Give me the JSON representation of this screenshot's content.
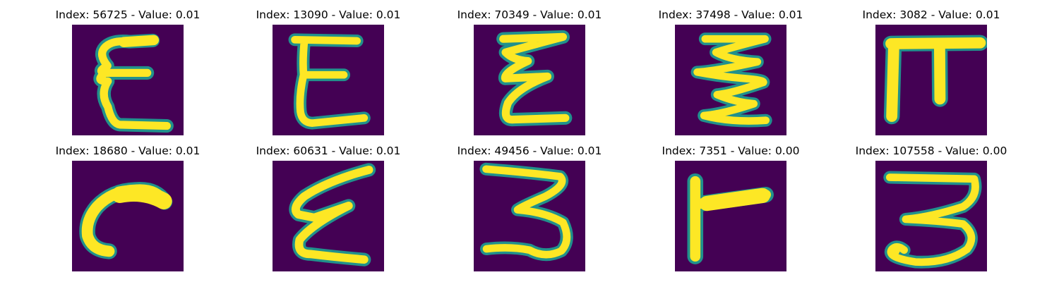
{
  "panels": [
    {
      "title": "Index: 56725 - Value: 0.01",
      "glyph": "epsilon-a"
    },
    {
      "title": "Index: 13090 - Value: 0.01",
      "glyph": "epsilon-b"
    },
    {
      "title": "Index: 70349 - Value: 0.01",
      "glyph": "epsilon-c"
    },
    {
      "title": "Index: 37498 - Value: 0.01",
      "glyph": "zigzag"
    },
    {
      "title": "Index: 3082 - Value: 0.01",
      "glyph": "pi"
    },
    {
      "title": "Index: 18680 - Value: 0.01",
      "glyph": "hook"
    },
    {
      "title": "Index: 60631 - Value: 0.01",
      "glyph": "epsilon-d"
    },
    {
      "title": "Index: 49456 - Value: 0.01",
      "glyph": "three-a"
    },
    {
      "title": "Index: 7351 - Value: 0.00",
      "glyph": "t-rotated"
    },
    {
      "title": "Index: 107558 - Value: 0.00",
      "glyph": "three-b"
    }
  ],
  "colors": {
    "background": "#440154",
    "edge": "#21918c",
    "stroke": "#fde725"
  }
}
